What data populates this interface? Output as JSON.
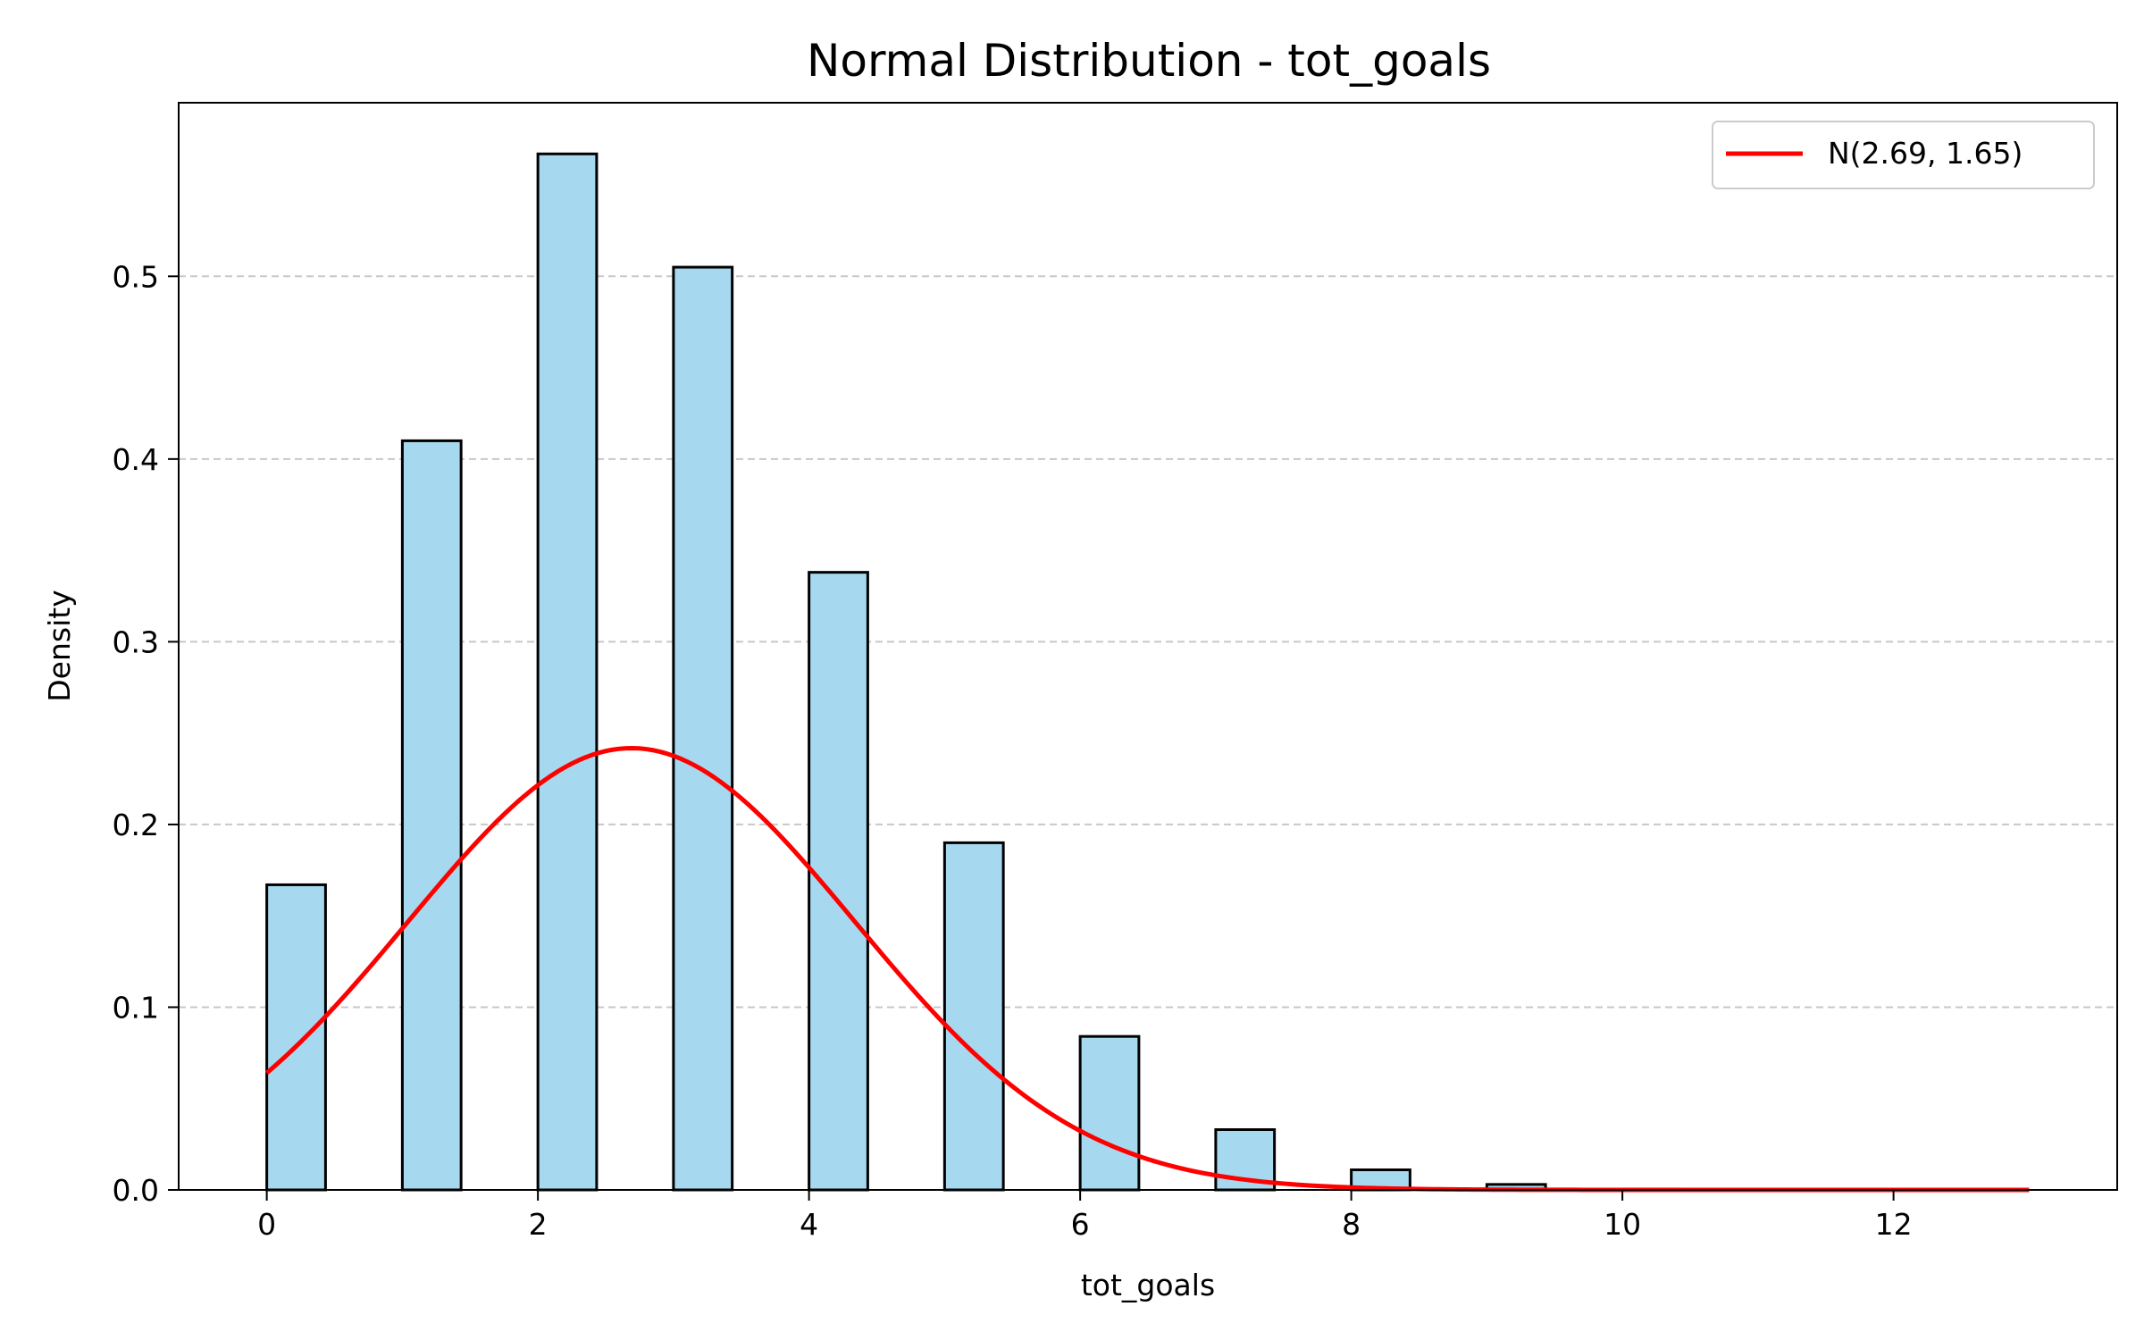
{
  "chart_data": {
    "type": "bar",
    "title": "Normal Distribution - tot_goals",
    "xlabel": "tot_goals",
    "ylabel": "Density",
    "xlim": [
      -0.65,
      13.65
    ],
    "ylim": [
      0,
      0.595
    ],
    "xticks": [
      0,
      2,
      4,
      6,
      8,
      10,
      12
    ],
    "yticks": [
      0.0,
      0.1,
      0.2,
      0.3,
      0.4,
      0.5
    ],
    "ytick_labels": [
      "0.0",
      "0.1",
      "0.2",
      "0.3",
      "0.4",
      "0.5"
    ],
    "grid": {
      "axis": "y",
      "style": "dashed"
    },
    "legend_position": "top-right",
    "bin_width": 0.4333,
    "histogram": [
      {
        "x": 0,
        "density": 0.167
      },
      {
        "x": 1,
        "density": 0.41
      },
      {
        "x": 2,
        "density": 0.567
      },
      {
        "x": 3,
        "density": 0.505
      },
      {
        "x": 4,
        "density": 0.338
      },
      {
        "x": 5,
        "density": 0.19
      },
      {
        "x": 6,
        "density": 0.084
      },
      {
        "x": 7,
        "density": 0.033
      },
      {
        "x": 8,
        "density": 0.011
      },
      {
        "x": 9,
        "density": 0.003
      },
      {
        "x": 10,
        "density": 0.0005
      },
      {
        "x": 11,
        "density": 0.0002
      },
      {
        "x": 12,
        "density": 0.0001
      }
    ],
    "series": [
      {
        "name": "N(2.69, 1.65)",
        "type": "line",
        "mean": 2.69,
        "std": 1.65,
        "x_range": [
          0,
          13
        ]
      }
    ],
    "colors": {
      "bar_fill": "#a6d9ef",
      "bar_edge": "#000000",
      "line": "#ff0000",
      "grid": "#c8c8c8"
    }
  }
}
